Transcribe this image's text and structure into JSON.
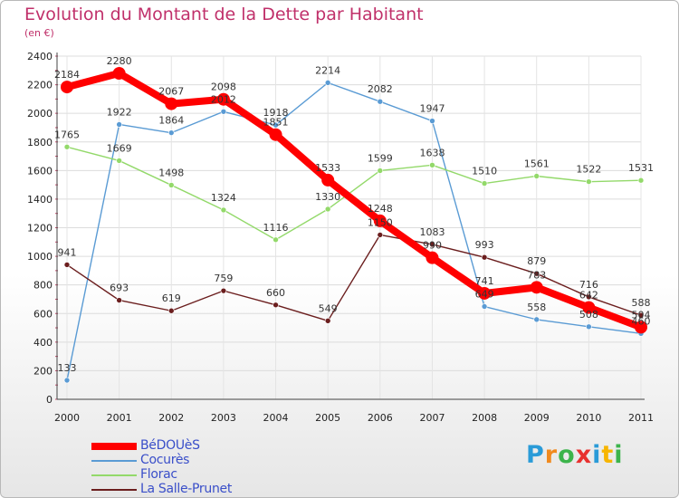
{
  "chart_data": {
    "type": "line",
    "title": "Evolution du Montant de la Dette par Habitant",
    "subtitle": "(en €)",
    "xlabel": "",
    "ylabel": "",
    "ylim": [
      0,
      2400
    ],
    "y_ticks": [
      "0",
      "200",
      "400",
      "600",
      "800",
      "1000",
      "1200",
      "1400",
      "1600",
      "1800",
      "2000",
      "2200",
      "2400"
    ],
    "categories": [
      "2000",
      "2001",
      "2002",
      "2003",
      "2004",
      "2005",
      "2006",
      "2007",
      "2008",
      "2009",
      "2010",
      "2011"
    ],
    "grid": true,
    "legend_position": "bottom-left",
    "series": [
      {
        "name": "BéDOUèS",
        "color": "#ff0000",
        "values": [
          2184,
          2280,
          2067,
          2098,
          1851,
          1533,
          1248,
          990,
          741,
          783,
          642,
          504
        ]
      },
      {
        "name": "Cocurès",
        "color": "#5a9bd4",
        "values": [
          133,
          1922,
          1864,
          2012,
          1918,
          2214,
          2082,
          1947,
          649,
          558,
          508,
          460
        ]
      },
      {
        "name": "Florac",
        "color": "#93d96a",
        "values": [
          1765,
          1669,
          1498,
          1324,
          1116,
          1330,
          1599,
          1638,
          1510,
          1561,
          1522,
          1531
        ]
      },
      {
        "name": "La Salle-Prunet",
        "color": "#6b1e1e",
        "values": [
          941,
          693,
          619,
          759,
          660,
          549,
          1150,
          1083,
          993,
          879,
          716,
          588
        ]
      }
    ]
  },
  "logo": {
    "letters": [
      "P",
      "r",
      "o",
      "x",
      "i",
      "t",
      "i"
    ],
    "colors": [
      "#2a9bd8",
      "#f18a1e",
      "#3cb44b",
      "#e8312f",
      "#2a9bd8",
      "#f7b500",
      "#3cb44b"
    ]
  }
}
